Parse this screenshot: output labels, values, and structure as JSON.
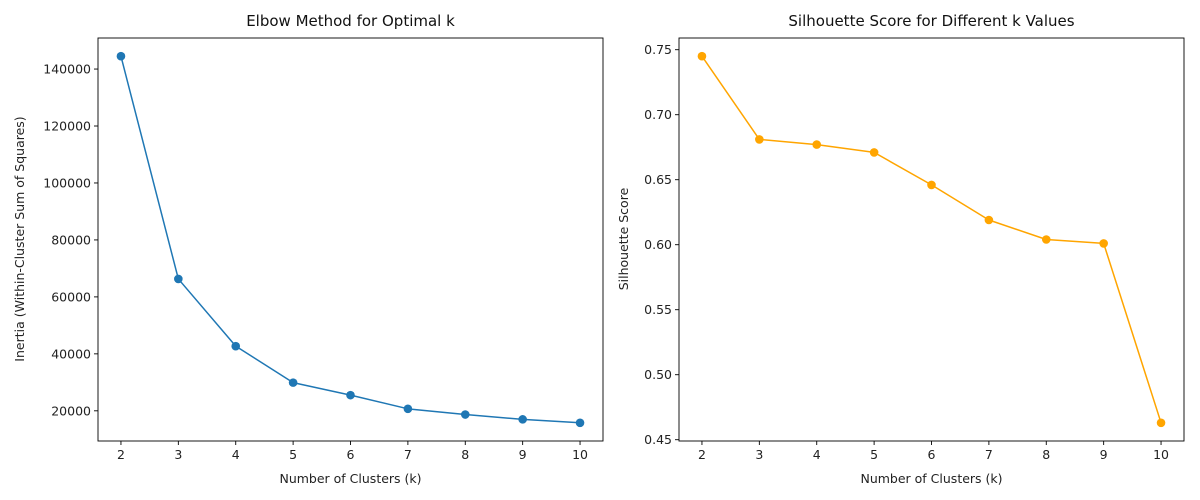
{
  "chart_data": [
    {
      "type": "line",
      "title": "Elbow Method for Optimal k",
      "xlabel": "Number of Clusters (k)",
      "ylabel": "Inertia (Within-Cluster Sum of Squares)",
      "x": [
        2,
        3,
        4,
        5,
        6,
        7,
        8,
        9,
        10
      ],
      "series": [
        {
          "values": [
            144500,
            66300,
            42700,
            29900,
            25500,
            20700,
            18700,
            17000,
            15800
          ],
          "color": "#1f77b4",
          "marker": "circle"
        }
      ],
      "xlim": [
        1.6,
        10.4
      ],
      "ylim": [
        9400,
        150900
      ],
      "xticks": [
        2,
        3,
        4,
        5,
        6,
        7,
        8,
        9,
        10
      ],
      "yticks": [
        20000,
        40000,
        60000,
        80000,
        100000,
        120000,
        140000
      ],
      "grid": false,
      "legend": "none"
    },
    {
      "type": "line",
      "title": "Silhouette Score for Different k Values",
      "xlabel": "Number of Clusters (k)",
      "ylabel": "Silhouette Score",
      "x": [
        2,
        3,
        4,
        5,
        6,
        7,
        8,
        9,
        10
      ],
      "series": [
        {
          "values": [
            0.745,
            0.681,
            0.677,
            0.671,
            0.646,
            0.619,
            0.604,
            0.601,
            0.463
          ],
          "color": "#ffa500",
          "marker": "circle"
        }
      ],
      "xlim": [
        1.6,
        10.4
      ],
      "ylim": [
        0.449,
        0.759
      ],
      "xticks": [
        2,
        3,
        4,
        5,
        6,
        7,
        8,
        9,
        10
      ],
      "yticks": [
        0.45,
        0.5,
        0.55,
        0.6,
        0.65,
        0.7,
        0.75
      ],
      "ytick_labels": [
        "0.45",
        "0.50",
        "0.55",
        "0.60",
        "0.65",
        "0.70",
        "0.75"
      ],
      "grid": false,
      "legend": "none"
    }
  ]
}
